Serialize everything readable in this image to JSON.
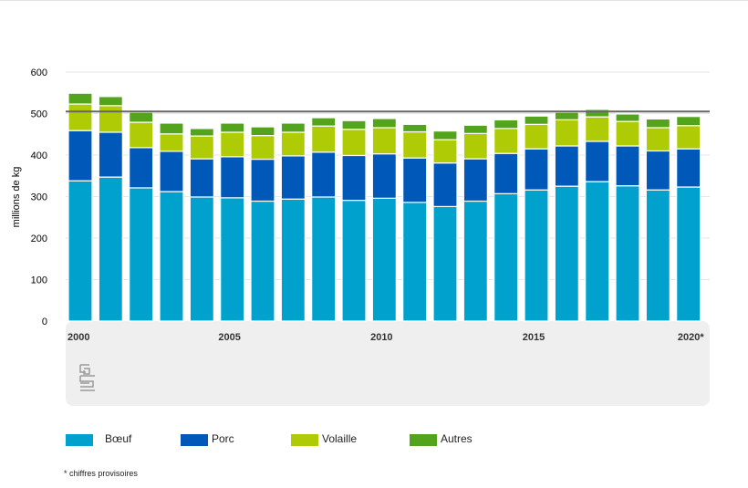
{
  "chart_data": {
    "type": "bar",
    "stacked": true,
    "title": "",
    "xlabel": "",
    "ylabel": "millions de kg",
    "ylim": [
      0,
      600
    ],
    "yticks": [
      "0",
      "100",
      "200",
      "300",
      "400",
      "500",
      "600"
    ],
    "grid": true,
    "reference_line": 505,
    "categories": [
      2000,
      2001,
      2002,
      2003,
      2004,
      2005,
      2006,
      2007,
      2008,
      2009,
      2010,
      2011,
      2012,
      2013,
      2014,
      2015,
      2016,
      2017,
      2018,
      2019,
      2020
    ],
    "xtick_labels": [
      {
        "index": 0,
        "label": "2000"
      },
      {
        "index": 5,
        "label": "2005"
      },
      {
        "index": 10,
        "label": "2010"
      },
      {
        "index": 15,
        "label": "2015"
      },
      {
        "index": 20,
        "label": "2020*"
      }
    ],
    "series": [
      {
        "name": "Bœuf",
        "color": "#00a1cd",
        "values": [
          338,
          347,
          321,
          312,
          299,
          297,
          289,
          294,
          299,
          291,
          296,
          286,
          276,
          289,
          307,
          316,
          325,
          336,
          326,
          316,
          323
        ]
      },
      {
        "name": "Porc",
        "color": "#0058b8",
        "values": [
          121,
          108,
          97,
          97,
          92,
          99,
          101,
          104,
          108,
          108,
          107,
          107,
          105,
          102,
          97,
          99,
          97,
          97,
          96,
          94,
          92
        ]
      },
      {
        "name": "Volaille",
        "color": "#afcb05",
        "values": [
          64,
          64,
          61,
          42,
          55,
          59,
          57,
          57,
          63,
          63,
          63,
          63,
          56,
          61,
          60,
          59,
          63,
          59,
          59,
          56,
          56
        ]
      },
      {
        "name": "Autres",
        "color": "#53a31d",
        "values": [
          26,
          22,
          24,
          26,
          18,
          22,
          21,
          22,
          20,
          21,
          22,
          18,
          21,
          20,
          21,
          20,
          18,
          18,
          18,
          21,
          22
        ]
      }
    ],
    "legend_position": "bottom",
    "footnote": "* chiffres provisoires",
    "logo": "cbs"
  }
}
